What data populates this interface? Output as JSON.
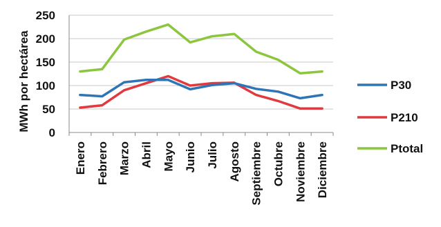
{
  "chart_data": {
    "type": "line",
    "title": "",
    "xlabel": "",
    "ylabel": "MWh por hectárea",
    "ylim": [
      0,
      250
    ],
    "yticks": [
      0,
      50,
      100,
      150,
      200,
      250
    ],
    "grid": true,
    "legend_position": "right",
    "categories": [
      "Enero",
      "Febrero",
      "Marzo",
      "Abril",
      "Mayo",
      "Junio",
      "Julio",
      "Agosto",
      "Septiembre",
      "Octubre",
      "Noviembre",
      "Diciembre"
    ],
    "series": [
      {
        "name": "P30",
        "color": "#2e75b6",
        "values": [
          80,
          77,
          107,
          112,
          112,
          92,
          101,
          105,
          93,
          87,
          73,
          80
        ]
      },
      {
        "name": "P210",
        "color": "#e0393e",
        "values": [
          53,
          58,
          90,
          105,
          120,
          100,
          105,
          106,
          80,
          67,
          51,
          51
        ]
      },
      {
        "name": "Ptotal",
        "color": "#8cc63f",
        "values": [
          130,
          135,
          198,
          215,
          230,
          192,
          205,
          210,
          172,
          155,
          126,
          130
        ]
      }
    ]
  }
}
